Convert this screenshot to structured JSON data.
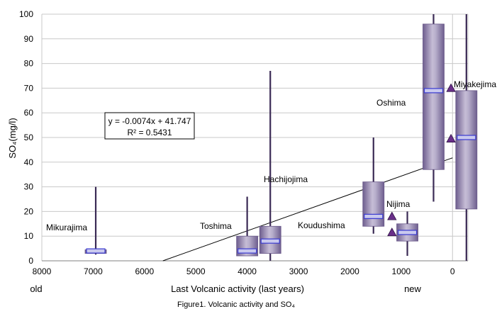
{
  "chart_data": {
    "type": "boxplot",
    "caption": "Figure1. Volcanic activity and SO₄",
    "xlabel": "Last Volcanic activity (last years)",
    "x_left_label": "old",
    "x_right_label": "new",
    "ylabel": "SO₄(mg/l)",
    "xlim": [
      8000,
      -300
    ],
    "ylim": [
      0,
      100
    ],
    "x_ticks": [
      8000,
      7000,
      6000,
      5000,
      4000,
      3000,
      2000,
      1000,
      0
    ],
    "y_ticks": [
      0,
      10,
      20,
      30,
      40,
      50,
      60,
      70,
      80,
      90,
      100
    ],
    "grid": "horizontal",
    "boxes": [
      {
        "name": "Mikurajima",
        "x": 6950,
        "min": 2.5,
        "q1": 3,
        "median": 4,
        "q3": 4.5,
        "max": 30
      },
      {
        "name": "Toshima",
        "x": 4000,
        "min": 2,
        "q1": 2,
        "median": 4,
        "q3": 10,
        "max": 26
      },
      {
        "name": "Hachijojima",
        "x": 3550,
        "min": 0,
        "q1": 3,
        "median": 8,
        "q3": 14,
        "max": 77
      },
      {
        "name": "Koudushima",
        "x": 1540,
        "min": 11,
        "q1": 14,
        "median": 18,
        "q3": 32,
        "max": 50
      },
      {
        "name": "Nijima",
        "x": 880,
        "min": 2,
        "q1": 8,
        "median": 11.5,
        "q3": 15,
        "max": 20
      },
      {
        "name": "Oshima",
        "x": 370,
        "min": 24,
        "q1": 37,
        "median": 69,
        "q3": 96,
        "max": 100
      },
      {
        "name": "Miyakejima",
        "x": -270,
        "min": 0,
        "q1": 21,
        "median": 50,
        "q3": 69,
        "max": 100
      }
    ],
    "markers": [
      {
        "x": 1180,
        "y": 18
      },
      {
        "x": 1180,
        "y": 11.5
      },
      {
        "x": 30,
        "y": 70
      },
      {
        "x": 30,
        "y": 49.5
      }
    ],
    "trendline": {
      "slope": -0.0074,
      "intercept": 41.747,
      "equation": "y = -0.0074x + 41.747",
      "r2": "R² = 0.5431"
    },
    "colors": {
      "box_edge": "#6b5a8a",
      "box_mid": "#b9afcc",
      "box_dark": "#6e5e8e",
      "whisker": "#3b2b55",
      "median_fill": "#c9c9ee",
      "median_stroke": "#3a3ad0",
      "marker": "#6a2f8a",
      "grid": "#c8c8c8"
    }
  }
}
